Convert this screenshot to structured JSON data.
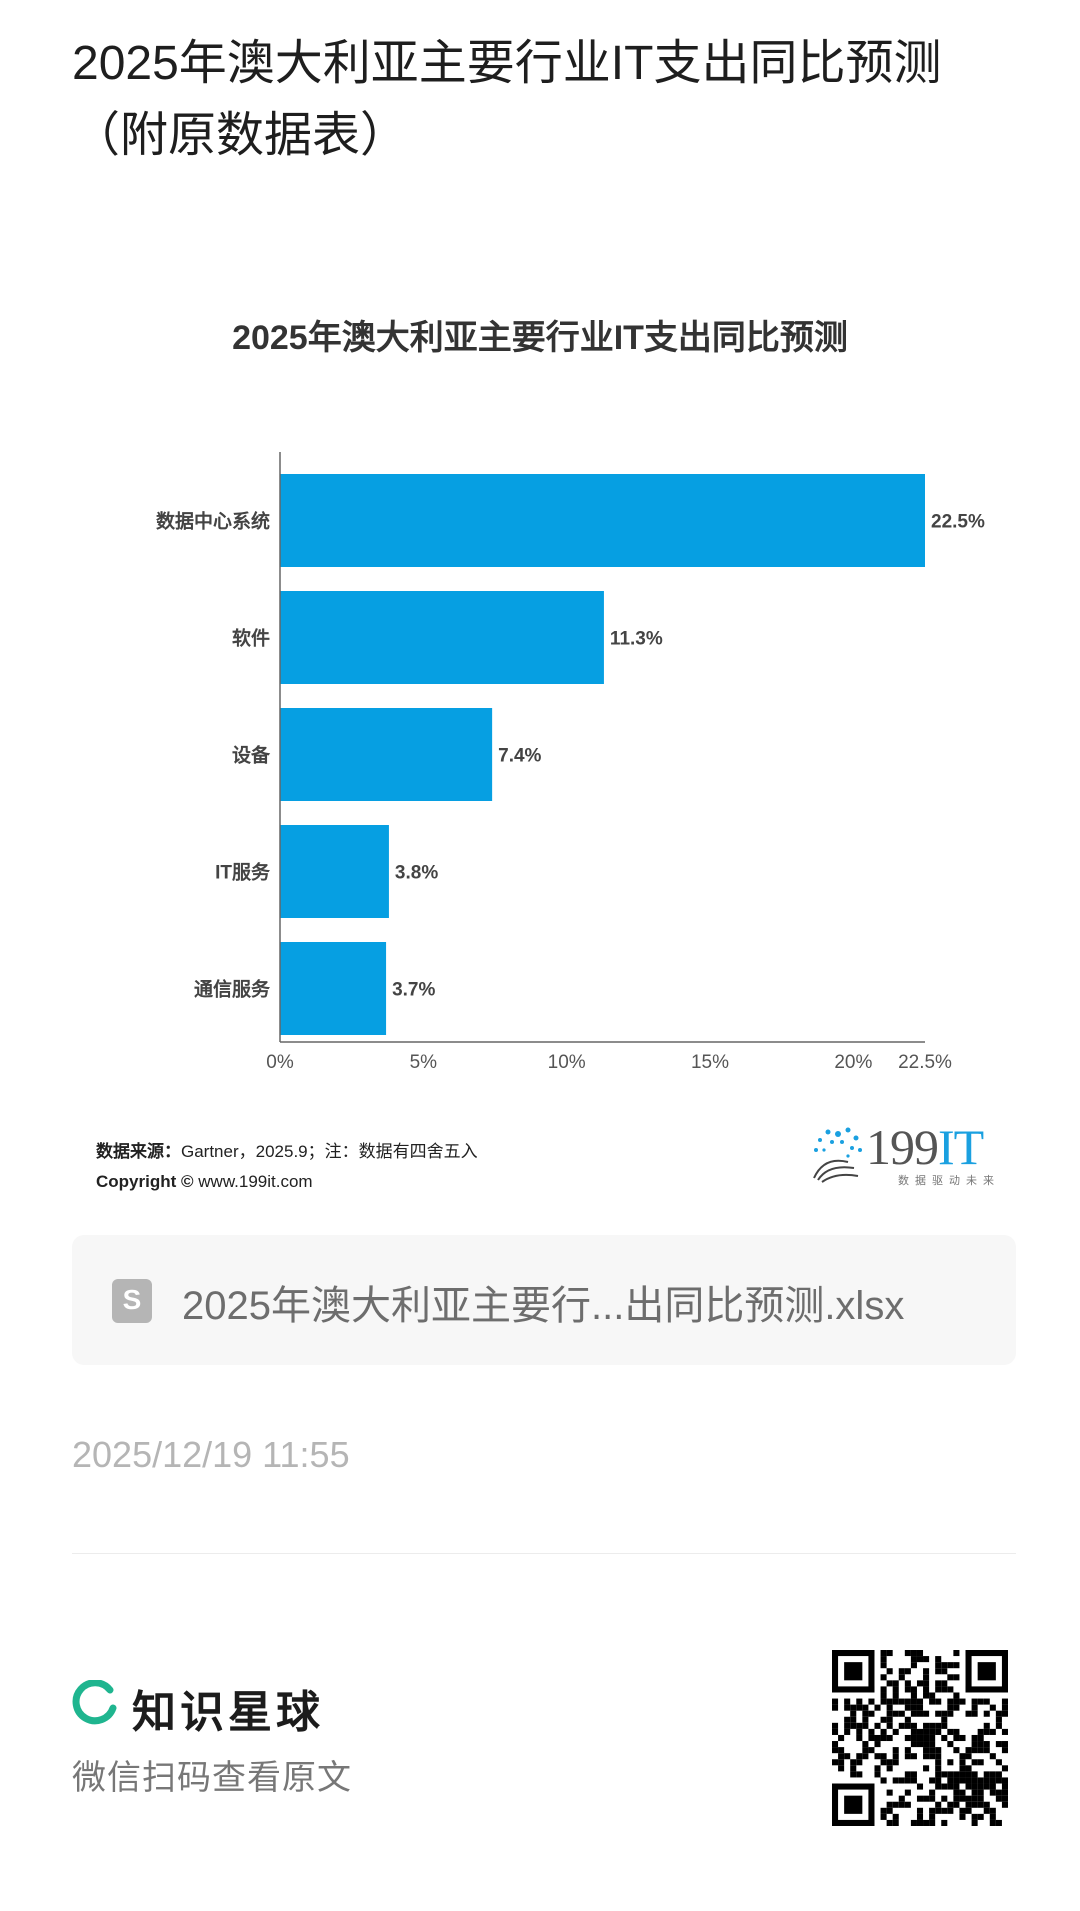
{
  "page": {
    "title": "2025年澳大利亚主要行业IT支出同比预测（附原数据表）"
  },
  "chart_data": {
    "type": "bar",
    "orientation": "horizontal",
    "title": "2025年澳大利亚主要行业IT支出同比预测",
    "categories": [
      "数据中心系统",
      "软件",
      "设备",
      "IT服务",
      "通信服务"
    ],
    "values": [
      22.5,
      11.3,
      7.4,
      3.8,
      3.7
    ],
    "value_labels": [
      "22.5%",
      "11.3%",
      "7.4%",
      "3.8%",
      "3.7%"
    ],
    "xlim": [
      0,
      22.5
    ],
    "x_ticks": [
      "0%",
      "5%",
      "10%",
      "15%",
      "20%",
      "22.5%"
    ],
    "x_tick_values": [
      0,
      5,
      10,
      15,
      20,
      22.5
    ],
    "bar_color": "#069fe2",
    "grid": false
  },
  "footer_note": {
    "source_label": "数据来源：",
    "source_text": "Gartner，2025.9；注：数据有四舍五入",
    "copyright_label": "Copyright ©",
    "copyright_text": "www.199it.com"
  },
  "brand": {
    "name_main": "199",
    "name_accent": "IT",
    "slogan": "数据驱动未来",
    "accent_color": "#1aa0e0"
  },
  "attachment": {
    "file_name": "2025年澳大利亚主要行...出同比预测.xlsx",
    "icon": "spreadsheet-file-icon"
  },
  "post": {
    "timestamp": "2025/12/19 11:55"
  },
  "promo": {
    "app_name": "知识星球",
    "scan_hint": "微信扫码查看原文",
    "logo_color": "#1fb58f"
  }
}
